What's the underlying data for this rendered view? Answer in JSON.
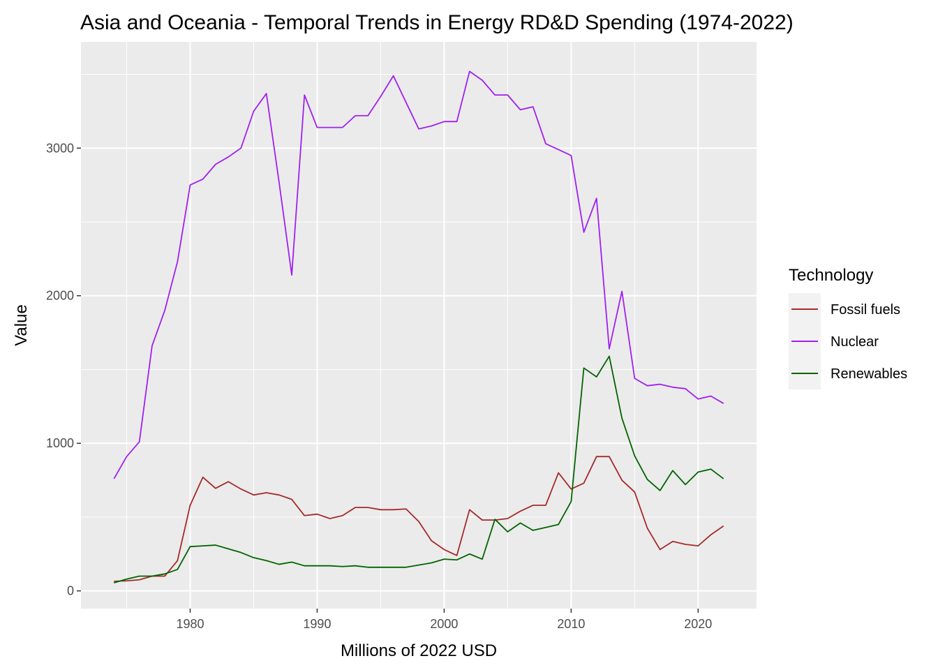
{
  "chart_data": {
    "type": "line",
    "title": "Asia and Oceania - Temporal Trends in Energy RD&D Spending (1974-2022)",
    "xlabel": "Millions of 2022 USD",
    "ylabel": "Value",
    "xlim": [
      1971.4,
      2024.6
    ],
    "ylim": [
      -120,
      3720
    ],
    "x_ticks": [
      1980,
      1990,
      2000,
      2010,
      2020
    ],
    "y_ticks": [
      0,
      1000,
      2000,
      3000
    ],
    "grid": true,
    "legend": {
      "title": "Technology",
      "position": "right"
    },
    "x": [
      1974,
      1975,
      1976,
      1977,
      1978,
      1979,
      1980,
      1981,
      1982,
      1983,
      1984,
      1985,
      1986,
      1987,
      1988,
      1989,
      1990,
      1991,
      1992,
      1993,
      1994,
      1995,
      1996,
      1997,
      1998,
      1999,
      2000,
      2001,
      2002,
      2003,
      2004,
      2005,
      2006,
      2007,
      2008,
      2009,
      2010,
      2011,
      2012,
      2013,
      2014,
      2015,
      2016,
      2017,
      2018,
      2019,
      2020,
      2021,
      2022
    ],
    "series": [
      {
        "name": "Fossil fuels",
        "color": "#a52a2a",
        "values": [
          65,
          68,
          75,
          100,
          100,
          205,
          580,
          770,
          695,
          740,
          690,
          650,
          665,
          650,
          620,
          510,
          520,
          490,
          510,
          565,
          565,
          550,
          550,
          555,
          470,
          340,
          280,
          240,
          550,
          480,
          480,
          490,
          540,
          580,
          580,
          800,
          690,
          730,
          910,
          910,
          750,
          670,
          425,
          280,
          335,
          315,
          305,
          380,
          440
        ]
      },
      {
        "name": "Nuclear",
        "color": "#a020f0",
        "values": [
          760,
          910,
          1010,
          1660,
          1900,
          2230,
          2750,
          2790,
          2890,
          2940,
          3000,
          3250,
          3370,
          2770,
          2140,
          3360,
          3140,
          3140,
          3140,
          3220,
          3220,
          3350,
          3490,
          3310,
          3130,
          3150,
          3180,
          3180,
          3520,
          3460,
          3360,
          3360,
          3260,
          3280,
          3030,
          2990,
          2950,
          2430,
          2660,
          1640,
          2030,
          1440,
          1390,
          1400,
          1380,
          1370,
          1300,
          1320,
          1270
        ]
      },
      {
        "name": "Renewables",
        "color": "#006400",
        "values": [
          55,
          80,
          100,
          100,
          115,
          145,
          300,
          305,
          310,
          285,
          260,
          225,
          205,
          180,
          195,
          170,
          170,
          170,
          165,
          170,
          160,
          160,
          160,
          160,
          175,
          190,
          215,
          210,
          250,
          215,
          485,
          400,
          460,
          410,
          430,
          450,
          605,
          1510,
          1450,
          1590,
          1170,
          915,
          755,
          680,
          815,
          720,
          805,
          825,
          760
        ]
      }
    ]
  }
}
